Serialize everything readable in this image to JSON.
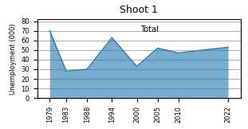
{
  "chart_data": {
    "type": "area",
    "title": "Shoot 1",
    "y_label": "Unemployment (000)",
    "annotations": [
      "Total"
    ],
    "x": [
      1979,
      1983,
      1988,
      1994,
      2000,
      2005,
      2010,
      2022
    ],
    "values": [
      70,
      28,
      30,
      63,
      33,
      52,
      47,
      53
    ],
    "xlim": [
      1976,
      2025
    ],
    "ylim": [
      0,
      82
    ],
    "xticks": [
      1979,
      1983,
      1988,
      1994,
      2000,
      2005,
      2010,
      2022
    ],
    "yticks": [
      0,
      10,
      20,
      30,
      40,
      50,
      60,
      70,
      80
    ],
    "grid": "y"
  }
}
